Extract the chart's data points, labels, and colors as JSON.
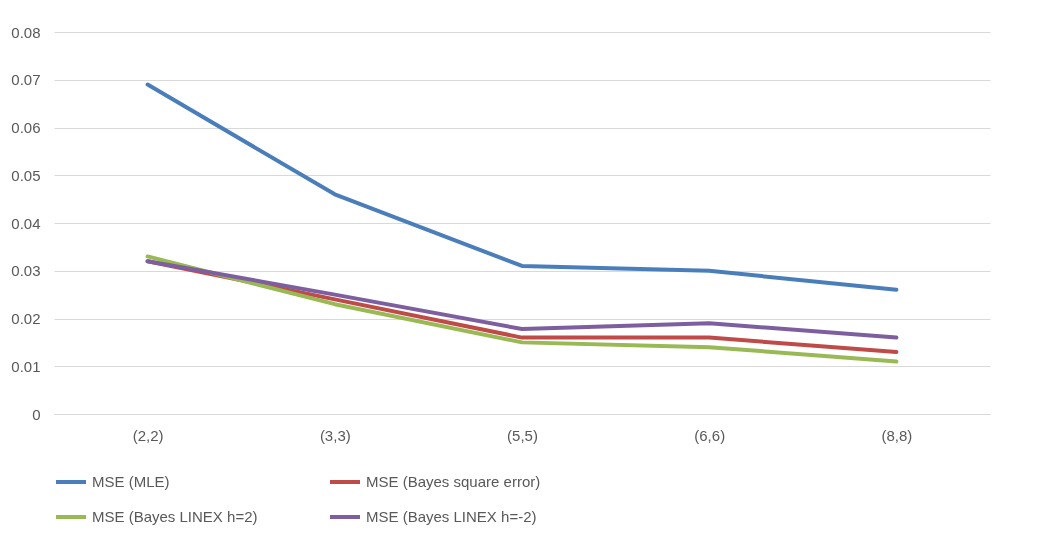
{
  "chart_data": {
    "type": "line",
    "categories": [
      "(2,2)",
      "(3,3)",
      "(5,5)",
      "(6,6)",
      "(8,8)"
    ],
    "series": [
      {
        "name": "MSE (MLE)",
        "color": "#4a7ebb",
        "values": [
          0.069,
          0.046,
          0.031,
          0.03,
          0.026
        ]
      },
      {
        "name": "MSE  (Bayes square error)",
        "color": "#be4b48",
        "values": [
          0.032,
          0.024,
          0.016,
          0.016,
          0.013
        ]
      },
      {
        "name": "MSE  (Bayes LINEX h=2)",
        "color": "#98b954",
        "values": [
          0.033,
          0.023,
          0.015,
          0.014,
          0.011
        ]
      },
      {
        "name": "MSE  (Bayes LINEX h=-2)",
        "color": "#7d5fa0",
        "values": [
          0.032,
          0.025,
          0.0178,
          0.019,
          0.016
        ]
      }
    ],
    "ylim": [
      0,
      0.08
    ],
    "yticks": [
      0,
      0.01,
      0.02,
      0.03,
      0.04,
      0.05,
      0.06,
      0.07,
      0.08
    ],
    "grid": "y",
    "legend": "bottom",
    "marker": "none",
    "line_style": "solid"
  }
}
